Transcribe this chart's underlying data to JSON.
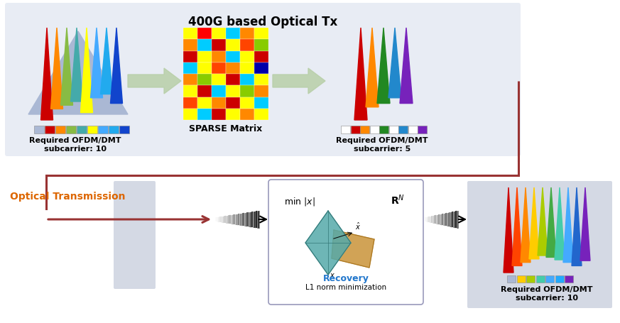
{
  "title_top": "400G based Optical Tx",
  "label_optical_tx": "Optical Transmission",
  "label_sparse": "SPARSE Matrix",
  "label_recovery": "Recovery",
  "label_l1": "L1 norm minimization",
  "label_subcarrier_10a": "Required OFDM/DMT\nsubcarrier: 10",
  "label_subcarrier_5": "Required OFDM/DMT\nsubcarrier: 5",
  "label_subcarrier_10b": "Required OFDM/DMT\nsubcarrier: 10",
  "bg_top_color": "#e8ecf4",
  "connector_color": "#993333",
  "arrow_color": "#b8cfa8",
  "optical_label_color": "#dd6600",
  "spike_colors_left": [
    "#aab8d4",
    "#cc0000",
    "#ff8800",
    "#88bb44",
    "#44aaaa",
    "#ffff00",
    "#44aaff",
    "#22aaee",
    "#1144cc"
  ],
  "spike_colors_right5": [
    "#cc0000",
    "#ff8800",
    "#228822",
    "#2288cc",
    "#7722bb"
  ],
  "bar_colors_left": [
    "#aab8d4",
    "#cc0000",
    "#ff8800",
    "#88bb44",
    "#44aaaa",
    "#ffff00",
    "#44aaff",
    "#22aaee",
    "#1144cc"
  ],
  "bar_colors_right5": [
    "white",
    "#cc0000",
    "#ff8800",
    "white",
    "#228822",
    "white",
    "#2288cc",
    "white",
    "#7722bb"
  ],
  "spike_colors_out": [
    "#cc0000",
    "#ff4400",
    "#ff8800",
    "#ffcc00",
    "#aacc00",
    "#44aa44",
    "#44ccaa",
    "#44aaff",
    "#2266cc",
    "#7722bb"
  ],
  "bar_colors_out": [
    "#aab8d4",
    "#ffcc00",
    "#aacc00",
    "#44ccaa",
    "#44aaff",
    "#22aaff",
    "#7722bb"
  ],
  "matrix_colors": [
    [
      "#ffff00",
      "#ff0000",
      "#ffff00",
      "#00ccff",
      "#ff8800",
      "#ffff00"
    ],
    [
      "#ff8800",
      "#00ccff",
      "#cc0000",
      "#ffff00",
      "#ff4400",
      "#88cc00"
    ],
    [
      "#cc0000",
      "#ffff00",
      "#ff8800",
      "#00ccff",
      "#ffff00",
      "#cc0000"
    ],
    [
      "#00ccff",
      "#ffff00",
      "#ff4400",
      "#ff8800",
      "#ffff00",
      "#0000aa"
    ],
    [
      "#ff8800",
      "#88cc00",
      "#ffff00",
      "#cc0000",
      "#00ccff",
      "#ffff00"
    ],
    [
      "#ffff00",
      "#cc0000",
      "#00ccff",
      "#ffff00",
      "#88cc00",
      "#ff8800"
    ],
    [
      "#ff4400",
      "#ffff00",
      "#ff8800",
      "#cc0000",
      "#ffff00",
      "#00ccff"
    ],
    [
      "#ffff00",
      "#00ccff",
      "#cc0000",
      "#ffff00",
      "#ff8800",
      "#ffff00"
    ]
  ]
}
